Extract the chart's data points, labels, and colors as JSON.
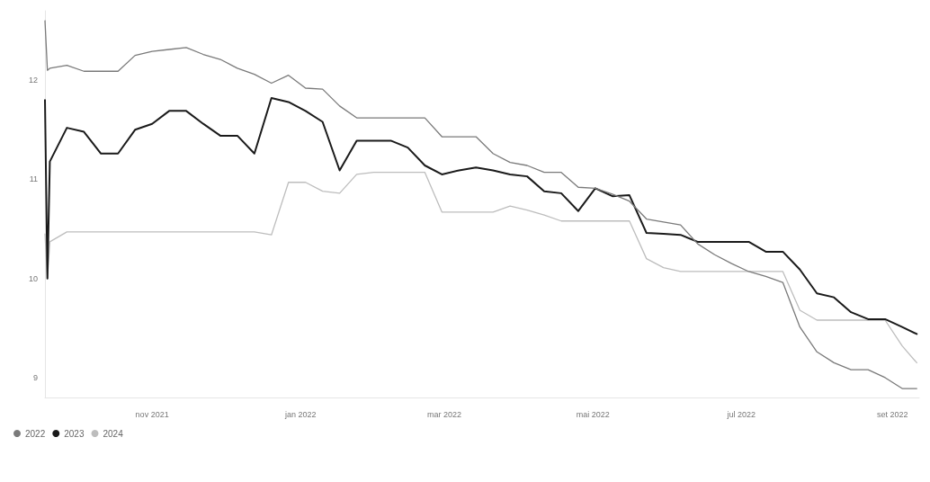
{
  "chart_data": {
    "type": "line",
    "x": [
      "2021-09-18",
      "2021-09-19",
      "2021-09-20",
      "2021-09-27",
      "2021-10-04",
      "2021-10-11",
      "2021-10-18",
      "2021-10-25",
      "2021-11-01",
      "2021-11-08",
      "2021-11-15",
      "2021-11-22",
      "2021-11-29",
      "2021-12-06",
      "2021-12-13",
      "2021-12-20",
      "2021-12-27",
      "2022-01-03",
      "2022-01-10",
      "2022-01-17",
      "2022-01-24",
      "2022-01-31",
      "2022-02-07",
      "2022-02-14",
      "2022-02-21",
      "2022-02-28",
      "2022-03-07",
      "2022-03-14",
      "2022-03-21",
      "2022-03-28",
      "2022-04-04",
      "2022-04-11",
      "2022-04-18",
      "2022-04-25",
      "2022-05-02",
      "2022-05-09",
      "2022-05-16",
      "2022-05-23",
      "2022-05-30",
      "2022-06-06",
      "2022-06-13",
      "2022-06-20",
      "2022-06-27",
      "2022-07-04",
      "2022-07-11",
      "2022-07-18",
      "2022-07-25",
      "2022-08-01",
      "2022-08-08",
      "2022-08-15",
      "2022-08-22",
      "2022-08-29",
      "2022-09-05",
      "2022-09-11"
    ],
    "series": [
      {
        "name": "2022",
        "color": "#7a7a7a",
        "values": [
          12.6,
          12.1,
          12.12,
          12.15,
          12.09,
          12.09,
          12.09,
          12.25,
          12.29,
          12.31,
          12.33,
          12.26,
          12.21,
          12.12,
          12.06,
          11.97,
          12.05,
          11.92,
          11.91,
          11.74,
          11.62,
          11.62,
          11.62,
          11.62,
          11.62,
          11.43,
          11.43,
          11.43,
          11.26,
          11.17,
          11.14,
          11.07,
          11.07,
          10.92,
          10.91,
          10.85,
          10.78,
          10.6,
          10.57,
          10.54,
          10.35,
          10.24,
          10.15,
          10.07,
          10.02,
          9.96,
          9.51,
          9.26,
          9.15,
          9.08,
          9.08,
          9.0,
          8.89,
          8.89
        ]
      },
      {
        "name": "2023",
        "color": "#1a1a1a",
        "values": [
          11.8,
          10.0,
          11.18,
          11.52,
          11.48,
          11.26,
          11.26,
          11.5,
          11.56,
          11.69,
          11.69,
          11.56,
          11.44,
          11.44,
          11.26,
          11.82,
          11.78,
          11.69,
          11.58,
          11.09,
          11.39,
          11.39,
          11.39,
          11.32,
          11.14,
          11.05,
          11.09,
          11.12,
          11.09,
          11.05,
          11.03,
          10.88,
          10.86,
          10.68,
          10.91,
          10.83,
          10.84,
          10.46,
          10.45,
          10.44,
          10.37,
          10.37,
          10.37,
          10.37,
          10.27,
          10.27,
          10.09,
          9.85,
          9.81,
          9.66,
          9.59,
          9.59,
          9.51,
          9.44
        ]
      },
      {
        "name": "2024",
        "color": "#bdbdbd",
        "values": [
          10.45,
          10.0,
          10.37,
          10.47,
          10.47,
          10.47,
          10.47,
          10.47,
          10.47,
          10.47,
          10.47,
          10.47,
          10.47,
          10.47,
          10.47,
          10.44,
          10.97,
          10.97,
          10.88,
          10.86,
          11.05,
          11.07,
          11.07,
          11.07,
          11.07,
          10.67,
          10.67,
          10.67,
          10.67,
          10.73,
          10.69,
          10.64,
          10.58,
          10.58,
          10.58,
          10.58,
          10.58,
          10.2,
          10.11,
          10.07,
          10.07,
          10.07,
          10.07,
          10.07,
          10.07,
          10.07,
          9.68,
          9.58,
          9.58,
          9.58,
          9.58,
          9.58,
          9.32,
          9.15
        ]
      }
    ],
    "xticks": [
      {
        "value": "2021-11-01",
        "label": "nov 2021"
      },
      {
        "value": "2022-01-01",
        "label": "jan 2022"
      },
      {
        "value": "2022-03-01",
        "label": "mar 2022"
      },
      {
        "value": "2022-05-01",
        "label": "mai 2022"
      },
      {
        "value": "2022-07-01",
        "label": "jul 2022"
      },
      {
        "value": "2022-09-01",
        "label": "set 2022"
      }
    ],
    "xlim": [
      "2021-09-18",
      "2022-09-12"
    ],
    "ylim": [
      8.8,
      12.7
    ],
    "yticks": [
      9,
      10,
      11,
      12
    ],
    "grid": false,
    "legend": "bottom left"
  }
}
